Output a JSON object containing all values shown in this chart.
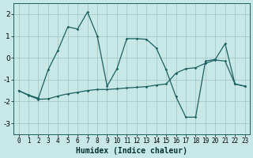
{
  "xlabel": "Humidex (Indice chaleur)",
  "background_color": "#c8e8e8",
  "grid_color": "#a8c8c8",
  "line_color": "#1a6060",
  "xlim": [
    -0.5,
    23.5
  ],
  "ylim": [
    -3.5,
    2.5
  ],
  "yticks": [
    -3,
    -2,
    -1,
    0,
    1,
    2
  ],
  "xticks": [
    0,
    1,
    2,
    3,
    4,
    5,
    6,
    7,
    8,
    9,
    10,
    11,
    12,
    13,
    14,
    15,
    16,
    17,
    18,
    19,
    20,
    21,
    22,
    23
  ],
  "curve1_x": [
    0,
    1,
    2,
    3,
    4,
    5,
    6,
    7,
    8,
    9,
    10,
    11,
    12,
    13,
    14,
    15,
    16,
    17,
    18,
    19,
    20,
    21,
    22,
    23
  ],
  "curve1_y": [
    -1.5,
    -1.7,
    -1.85,
    -0.55,
    0.35,
    1.42,
    1.32,
    2.1,
    1.0,
    -1.3,
    -0.5,
    0.88,
    0.88,
    0.85,
    0.45,
    -0.55,
    -1.78,
    -2.72,
    -2.72,
    -0.15,
    -0.07,
    0.65,
    -1.2,
    -1.3
  ],
  "curve2_x": [
    0,
    1,
    2,
    3,
    4,
    5,
    6,
    7,
    8,
    9,
    10,
    11,
    12,
    13,
    14,
    15,
    16,
    17,
    18,
    19,
    20,
    21,
    22,
    23
  ],
  "curve2_y": [
    -1.5,
    -1.72,
    -1.9,
    -1.88,
    -1.75,
    -1.65,
    -1.58,
    -1.5,
    -1.45,
    -1.45,
    -1.42,
    -1.38,
    -1.35,
    -1.32,
    -1.25,
    -1.2,
    -0.7,
    -0.5,
    -0.45,
    -0.25,
    -0.1,
    -0.15,
    -1.2,
    -1.3
  ]
}
